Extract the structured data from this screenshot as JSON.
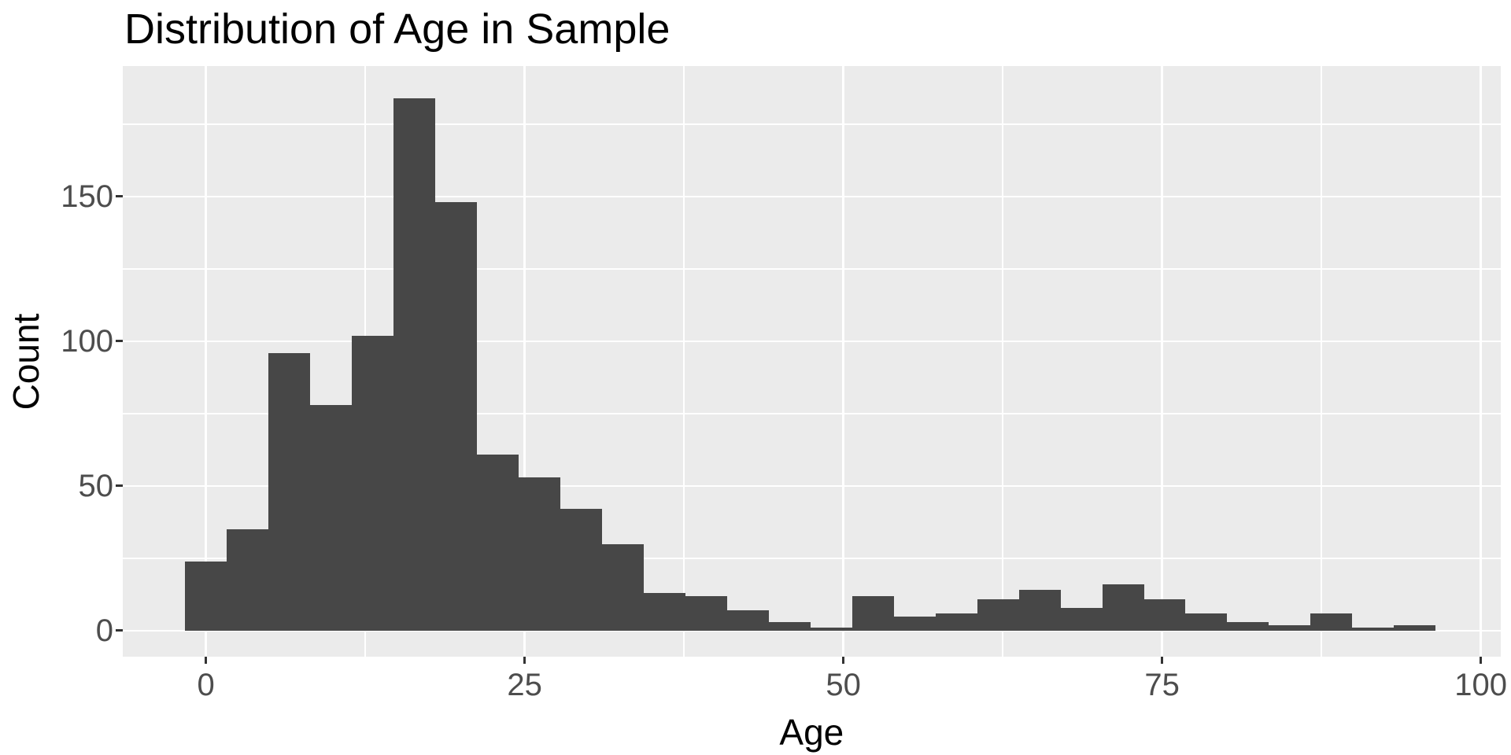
{
  "title": "Distribution of Age in Sample",
  "chart_data": {
    "type": "bar",
    "subtype": "histogram",
    "title": "Distribution of Age in Sample",
    "xlabel": "Age",
    "ylabel": "Count",
    "bin_start": -1.635,
    "bin_width": 3.27,
    "bin_centers": [
      0,
      3.27,
      6.54,
      9.81,
      13.08,
      16.35,
      19.62,
      22.89,
      26.16,
      29.43,
      32.7,
      35.97,
      39.24,
      42.51,
      45.78,
      49.05,
      52.32,
      55.59,
      58.86,
      62.13,
      65.4,
      68.67,
      71.94,
      75.21,
      78.48,
      81.75,
      85.02,
      88.29,
      91.56,
      94.83
    ],
    "counts": [
      24,
      35,
      96,
      78,
      102,
      184,
      148,
      61,
      53,
      42,
      30,
      13,
      12,
      7,
      3,
      1,
      12,
      5,
      6,
      11,
      14,
      8,
      16,
      11,
      6,
      3,
      2,
      6,
      1,
      2
    ],
    "x_ticks": [
      0,
      25,
      50,
      75,
      100
    ],
    "x_minor_ticks": [
      12.5,
      37.5,
      62.5,
      87.5
    ],
    "y_ticks": [
      0,
      50,
      100,
      150
    ],
    "y_minor_ticks": [
      25,
      75,
      125,
      175
    ],
    "xlim": [
      -6.52,
      101.55
    ],
    "ylim": [
      -8.97,
      195.1
    ],
    "grid": true,
    "legend_position": "none"
  },
  "style": {
    "bar_color": "#474747",
    "panel_bg": "#EBEBEB",
    "grid_color": "#FFFFFF",
    "tick_label_color": "#4D4D4D",
    "tick_mark_color": "#333333",
    "axis_title_color": "#000000",
    "title_color": "#000000",
    "page_bg": "#FFFFFF"
  }
}
